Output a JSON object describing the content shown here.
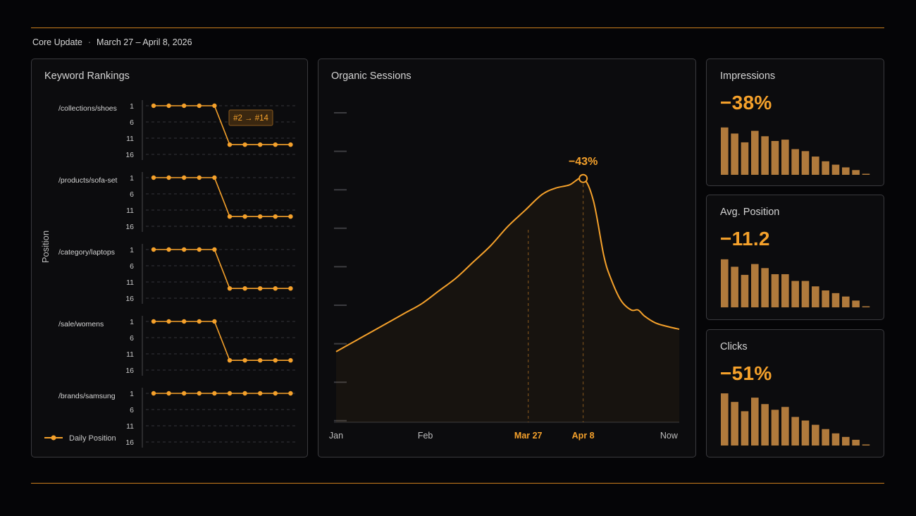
{
  "header": {
    "title": "Core Update",
    "separator": "·",
    "date_range": "March 27 – April 8, 2026"
  },
  "colors": {
    "accent": "#f5a12b",
    "bar": "#b07a3c",
    "grid": "#3a3a3e",
    "panel_border": "#3a3a3e"
  },
  "keyword_rankings": {
    "title": "Keyword Rankings",
    "y_axis_label": "Position",
    "legend_label": "Daily Position",
    "tick_labels": [
      "1",
      "6",
      "11",
      "16"
    ],
    "callout": "#2 → #14",
    "keywords": [
      {
        "name": "/collections/shoes",
        "positions": [
          1,
          1,
          1,
          1,
          1,
          13,
          13,
          13,
          13,
          13
        ]
      },
      {
        "name": "/products/sofa-set",
        "positions": [
          1,
          1,
          1,
          1,
          1,
          13,
          13,
          13,
          13,
          13
        ]
      },
      {
        "name": "/category/laptops",
        "positions": [
          1,
          1,
          1,
          1,
          1,
          13,
          13,
          13,
          13,
          13
        ]
      },
      {
        "name": "/sale/womens",
        "positions": [
          1,
          1,
          1,
          1,
          1,
          13,
          13,
          13,
          13,
          13
        ]
      },
      {
        "name": "/brands/samsung",
        "positions": [
          1,
          1,
          1,
          1,
          1,
          1,
          1,
          1,
          1,
          1
        ]
      }
    ]
  },
  "organic_sessions": {
    "title": "Organic Sessions",
    "x_labels": [
      "Jan",
      "Feb",
      "Mar 27",
      "Apr 8",
      "Now"
    ],
    "highlight_labels": [
      "Mar 27",
      "Apr 8"
    ],
    "peak_annotation": "−43%",
    "chart_data": {
      "type": "line",
      "x": [
        0,
        5,
        10,
        15,
        20,
        25,
        30,
        35,
        40,
        45,
        50,
        55,
        60,
        64,
        68,
        72,
        75,
        78,
        80,
        83,
        86,
        88,
        90,
        93,
        96,
        100
      ],
      "y": [
        22,
        25,
        28,
        31,
        34,
        37,
        41,
        45,
        50,
        55,
        61,
        66,
        71,
        73,
        74,
        76,
        69,
        52,
        45,
        38,
        35,
        35,
        33,
        31,
        30,
        29
      ],
      "ylim": [
        0,
        100
      ]
    }
  },
  "kpis": [
    {
      "id": "impressions",
      "title": "Impressions",
      "value": "−38%",
      "bars": [
        70,
        61,
        48,
        65,
        57,
        50,
        52,
        38,
        35,
        27,
        20,
        15,
        11,
        7,
        1
      ]
    },
    {
      "id": "avg-position",
      "title": "Avg. Position",
      "value": "−11.2",
      "bars": [
        71,
        60,
        48,
        64,
        58,
        49,
        49,
        39,
        39,
        31,
        25,
        21,
        16,
        10,
        1
      ]
    },
    {
      "id": "clicks",
      "title": "Clicks",
      "value": "−51%",
      "bars": [
        73,
        61,
        48,
        67,
        58,
        50,
        54,
        40,
        35,
        29,
        23,
        17,
        12,
        8,
        1
      ]
    }
  ]
}
